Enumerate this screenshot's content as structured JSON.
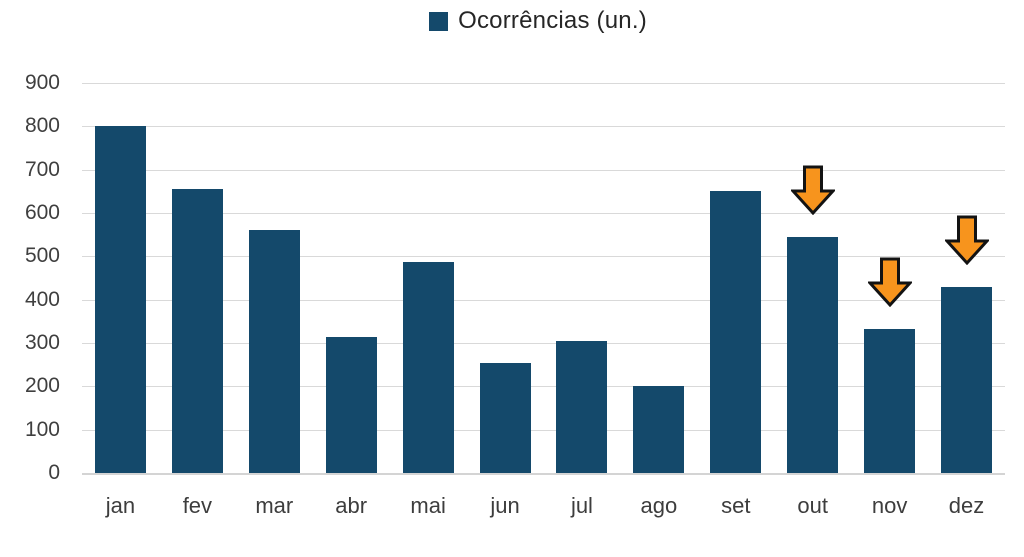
{
  "legend": {
    "label": "Ocorrências (un.)"
  },
  "colors": {
    "bar": "#14496b",
    "arrow_fill": "#f7941d",
    "arrow_outline": "#131313",
    "grid": "#d9d9d9",
    "axis_text": "#3f3f3f"
  },
  "chart_data": {
    "type": "bar",
    "title": "",
    "xlabel": "",
    "ylabel": "",
    "series_name": "Ocorrências (un.)",
    "categories": [
      "jan",
      "fev",
      "mar",
      "abr",
      "mai",
      "jun",
      "jul",
      "ago",
      "set",
      "out",
      "nov",
      "dez"
    ],
    "values": [
      800,
      655,
      560,
      315,
      488,
      255,
      305,
      200,
      650,
      545,
      332,
      430
    ],
    "ylim": [
      0,
      900
    ],
    "yticks": [
      0,
      100,
      200,
      300,
      400,
      500,
      600,
      700,
      800,
      900
    ],
    "grid": true,
    "legend_position": "top-center",
    "annotations": [
      {
        "type": "down-arrow",
        "category": "out"
      },
      {
        "type": "down-arrow",
        "category": "nov"
      },
      {
        "type": "down-arrow",
        "category": "dez"
      }
    ]
  }
}
